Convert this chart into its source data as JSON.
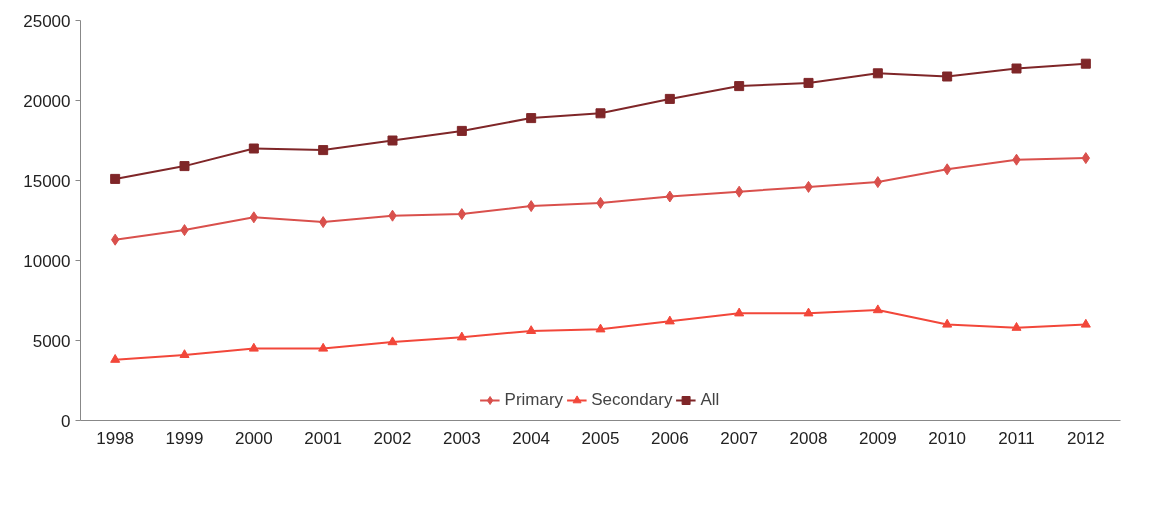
{
  "chart_data": {
    "type": "line",
    "categories": [
      "1998",
      "1999",
      "2000",
      "2001",
      "2002",
      "2003",
      "2004",
      "2005",
      "2006",
      "2007",
      "2008",
      "2009",
      "2010",
      "2011",
      "2012"
    ],
    "series": [
      {
        "name": "Primary",
        "color": "#d9504c",
        "marker": "diamond",
        "values": [
          11300,
          11900,
          12700,
          12400,
          12800,
          12900,
          13400,
          13600,
          14000,
          14300,
          14600,
          14900,
          15700,
          16300,
          16400
        ]
      },
      {
        "name": "Secondary",
        "color": "#f2473a",
        "marker": "triangle",
        "values": [
          3800,
          4100,
          4500,
          4500,
          4900,
          5200,
          5600,
          5700,
          6200,
          6700,
          6700,
          6900,
          6000,
          5800,
          6000
        ]
      },
      {
        "name": "All",
        "color": "#7f2628",
        "marker": "square",
        "values": [
          15100,
          15900,
          17000,
          16900,
          17500,
          18100,
          18900,
          19200,
          20100,
          20900,
          21100,
          21700,
          21500,
          22000,
          22300
        ]
      }
    ],
    "ylim": [
      0,
      25000
    ],
    "yticks": [
      0,
      5000,
      10000,
      15000,
      20000,
      25000
    ],
    "grid": false,
    "legend": "bottom",
    "line_style": "solid"
  }
}
